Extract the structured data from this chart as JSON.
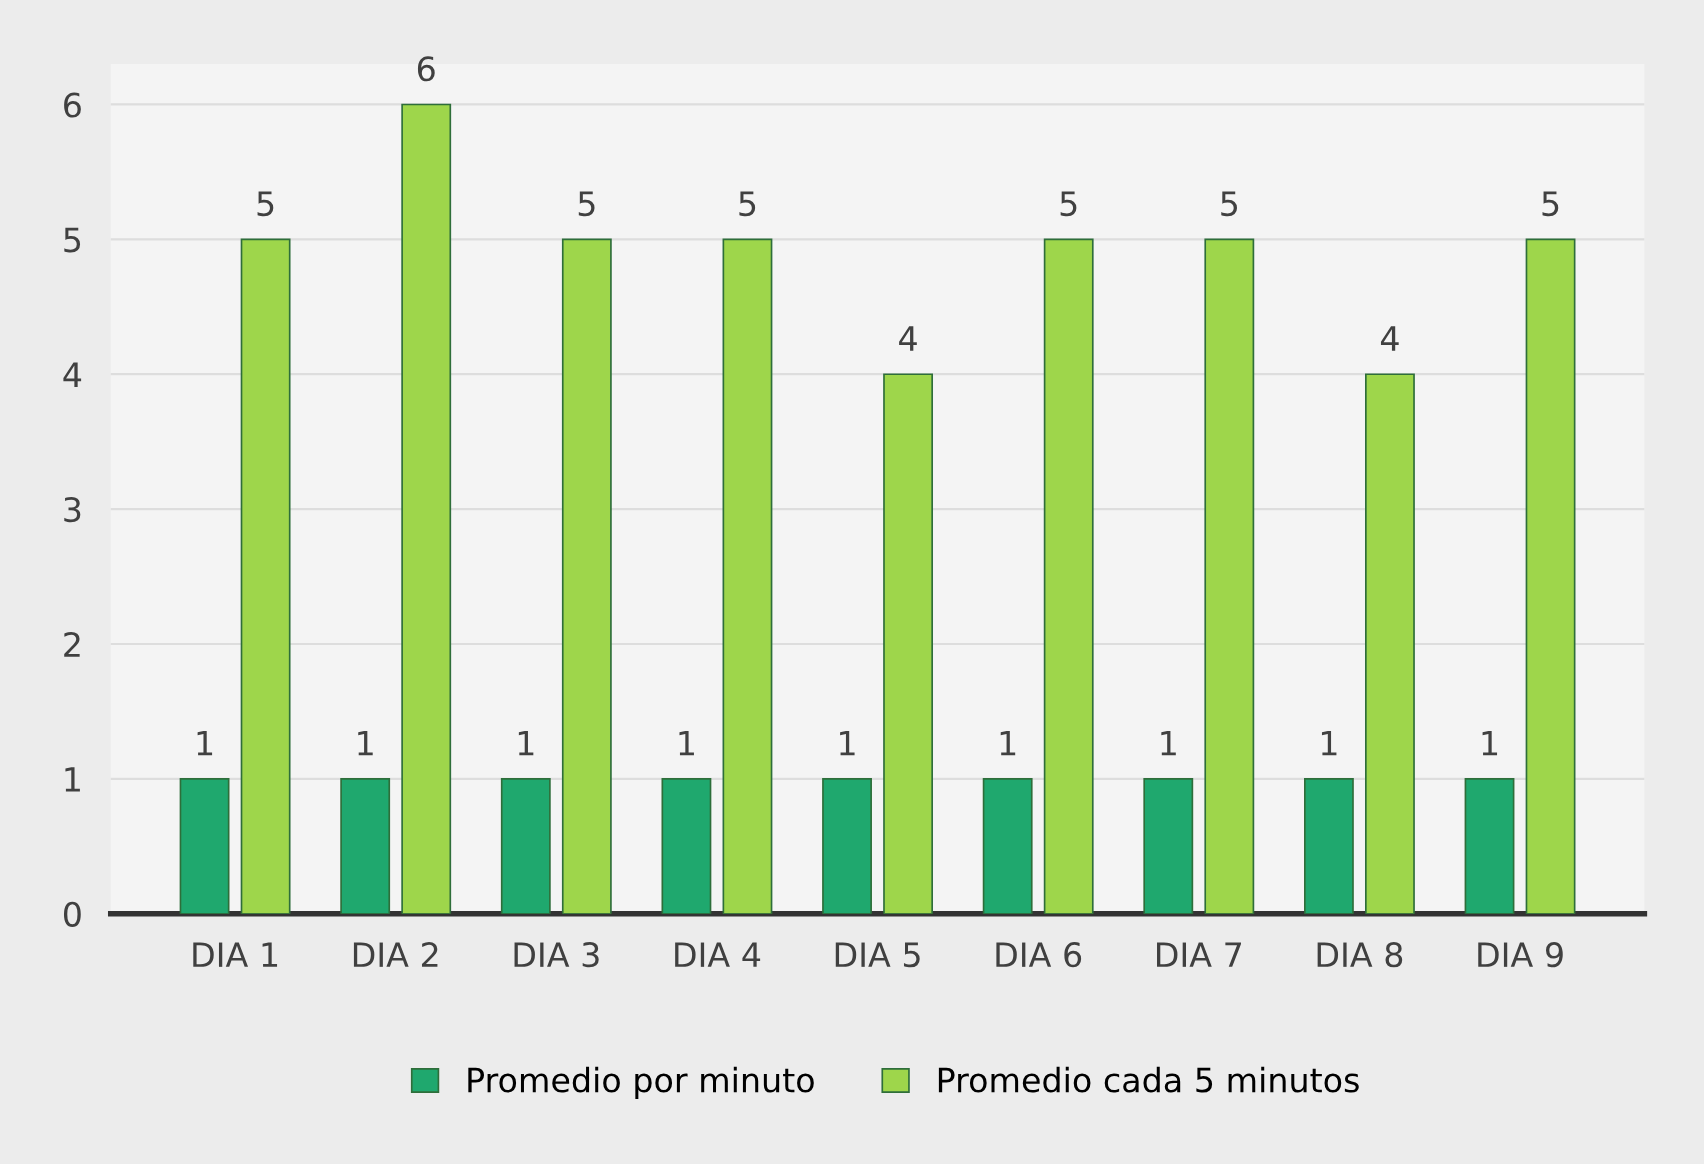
{
  "chart_data": {
    "type": "bar",
    "categories": [
      "DIA 1",
      "DIA 2",
      "DIA 3",
      "DIA 4",
      "DIA 5",
      "DIA 6",
      "DIA 7",
      "DIA 8",
      "DIA 9"
    ],
    "series": [
      {
        "name": "Promedio por minuto",
        "color": "#1fa86e",
        "values": [
          1,
          1,
          1,
          1,
          1,
          1,
          1,
          1,
          1
        ]
      },
      {
        "name": "Promedio cada 5 minutos",
        "color": "#9ed64b",
        "values": [
          5,
          6,
          5,
          5,
          4,
          5,
          5,
          4,
          5
        ]
      }
    ],
    "ylim": [
      0,
      6.3
    ],
    "yticks": [
      0,
      1,
      2,
      3,
      4,
      5,
      6
    ],
    "grid": "y",
    "legend": "bottom",
    "data_labels": true
  }
}
